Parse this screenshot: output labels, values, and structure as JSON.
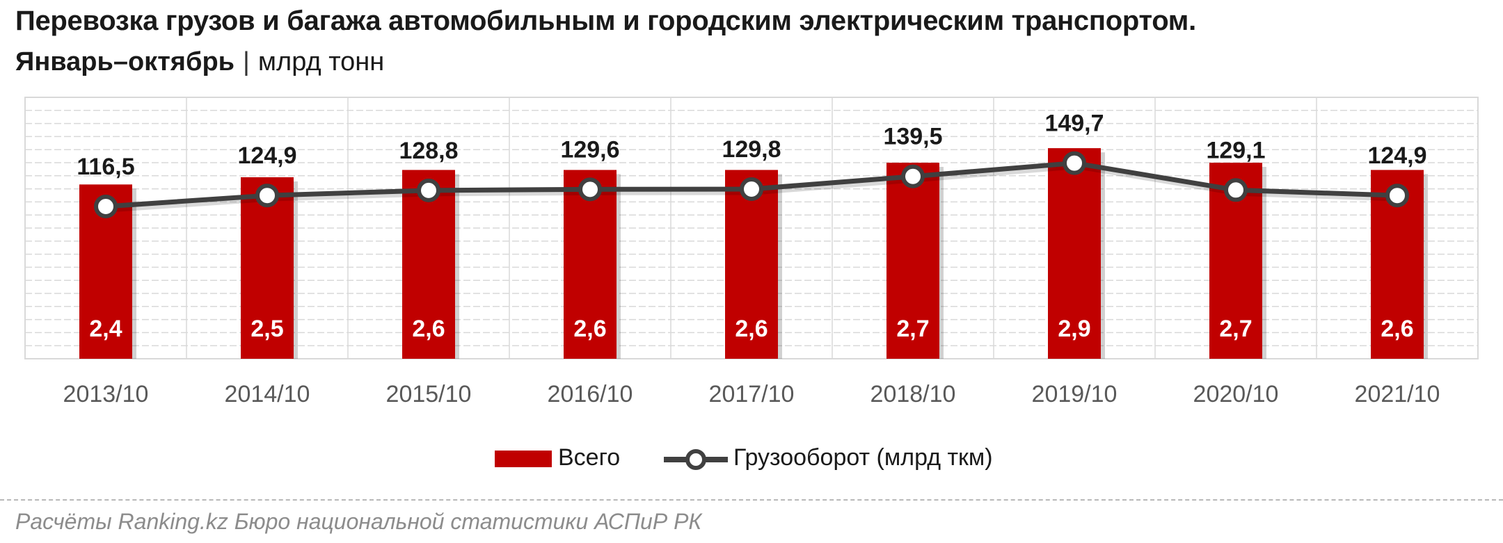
{
  "title": "Перевозка грузов и багажа автомобильным и городским электрическим транспортом.",
  "subtitle": {
    "period": "Январь–октябрь",
    "separator": "|",
    "unit": "млрд тонн"
  },
  "source": "Расчёты Ranking.kz Бюро национальной статистики АСПиР РК",
  "colors": {
    "bar": "#C00000",
    "line": "#404040",
    "grid": "#d9d9d9"
  },
  "chart_data": {
    "type": "bar",
    "categories": [
      "2013/10",
      "2014/10",
      "2015/10",
      "2016/10",
      "2017/10",
      "2018/10",
      "2019/10",
      "2020/10",
      "2021/10"
    ],
    "series": [
      {
        "name": "Всего",
        "type": "bar",
        "values": [
          2.4,
          2.5,
          2.6,
          2.6,
          2.6,
          2.7,
          2.9,
          2.7,
          2.6
        ],
        "labels": [
          "2,4",
          "2,5",
          "2,6",
          "2,6",
          "2,6",
          "2,7",
          "2,9",
          "2,7",
          "2,6"
        ]
      },
      {
        "name": "Грузооборот (млрд ткм)",
        "type": "line",
        "values": [
          116.5,
          124.9,
          128.8,
          129.6,
          129.8,
          139.5,
          149.7,
          129.1,
          124.9
        ],
        "labels": [
          "116,5",
          "124,9",
          "128,8",
          "129,6",
          "129,8",
          "139,5",
          "149,7",
          "129,1",
          "124,9"
        ]
      }
    ],
    "bar_ylim": [
      0,
      3.6
    ],
    "line_ylim": [
      0,
      200
    ],
    "grid": true,
    "legend": "bottom"
  }
}
